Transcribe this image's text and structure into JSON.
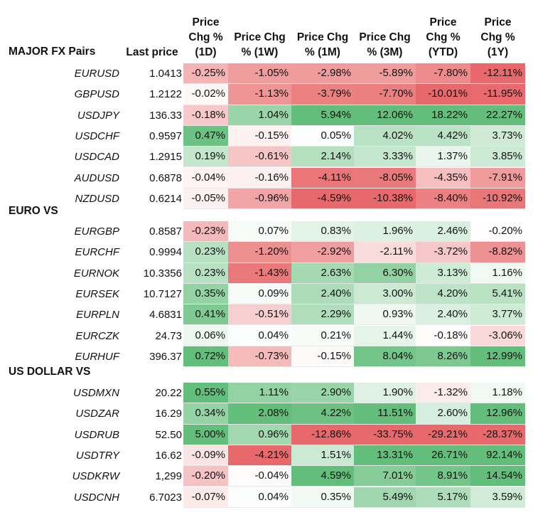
{
  "chart_data": {
    "type": "table",
    "columns": [
      {
        "key": "last",
        "lines": [
          "Last price"
        ]
      },
      {
        "key": "d1",
        "lines": [
          "Price",
          "Chg %",
          "(1D)"
        ]
      },
      {
        "key": "w1",
        "lines": [
          "Price Chg",
          "% (1W)"
        ]
      },
      {
        "key": "m1",
        "lines": [
          "Price Chg",
          "% (1M)"
        ]
      },
      {
        "key": "m3",
        "lines": [
          "Price Chg",
          "% (3M)"
        ]
      },
      {
        "key": "ytd",
        "lines": [
          "Price",
          "Chg %",
          "(YTD)"
        ]
      },
      {
        "key": "y1",
        "lines": [
          "Price",
          "Chg %",
          "(1Y)"
        ]
      }
    ],
    "sections": [
      {
        "name": "MAJOR FX Pairs",
        "rows": [
          {
            "pair": "EURUSD",
            "last": "1.0413",
            "values": [
              "-0.25%",
              "-1.05%",
              "-2.98%",
              "-5.89%",
              "-7.80%",
              "-12.11%"
            ]
          },
          {
            "pair": "GBPUSD",
            "last": "1.2122",
            "values": [
              "-0.02%",
              "-1.13%",
              "-3.79%",
              "-7.70%",
              "-10.01%",
              "-11.95%"
            ]
          },
          {
            "pair": "USDJPY",
            "last": "136.33",
            "values": [
              "-0.18%",
              "1.04%",
              "5.94%",
              "12.06%",
              "18.22%",
              "22.27%"
            ]
          },
          {
            "pair": "USDCHF",
            "last": "0.9597",
            "values": [
              "0.47%",
              "-0.15%",
              "0.05%",
              "4.02%",
              "4.42%",
              "3.73%"
            ]
          },
          {
            "pair": "USDCAD",
            "last": "1.2915",
            "values": [
              "0.19%",
              "-0.61%",
              "2.14%",
              "3.33%",
              "1.37%",
              "3.85%"
            ]
          },
          {
            "pair": "AUDUSD",
            "last": "0.6878",
            "values": [
              "-0.04%",
              "-0.16%",
              "-4.11%",
              "-8.05%",
              "-4.35%",
              "-7.91%"
            ]
          },
          {
            "pair": "NZDUSD",
            "last": "0.6214",
            "values": [
              "-0.05%",
              "-0.96%",
              "-4.59%",
              "-10.38%",
              "-8.40%",
              "-10.92%"
            ]
          }
        ]
      },
      {
        "name": "EURO VS",
        "rows": [
          {
            "pair": "EURGBP",
            "last": "0.8587",
            "values": [
              "-0.23%",
              "0.07%",
              "0.83%",
              "1.96%",
              "2.46%",
              "-0.20%"
            ]
          },
          {
            "pair": "EURCHF",
            "last": "0.9994",
            "values": [
              "0.23%",
              "-1.20%",
              "-2.92%",
              "-2.11%",
              "-3.72%",
              "-8.82%"
            ]
          },
          {
            "pair": "EURNOK",
            "last": "10.3356",
            "values": [
              "0.23%",
              "-1.43%",
              "2.63%",
              "6.30%",
              "3.13%",
              "1.16%"
            ]
          },
          {
            "pair": "EURSEK",
            "last": "10.7127",
            "values": [
              "0.35%",
              "0.09%",
              "2.40%",
              "3.00%",
              "4.20%",
              "5.41%"
            ]
          },
          {
            "pair": "EURPLN",
            "last": "4.6831",
            "values": [
              "0.41%",
              "-0.51%",
              "2.29%",
              "0.93%",
              "2.40%",
              "3.77%"
            ]
          },
          {
            "pair": "EURCZK",
            "last": "24.73",
            "values": [
              "0.06%",
              "0.04%",
              "0.21%",
              "1.44%",
              "-0.18%",
              "-3.06%"
            ]
          },
          {
            "pair": "EURHUF",
            "last": "396.37",
            "values": [
              "0.72%",
              "-0.73%",
              "-0.15%",
              "8.04%",
              "8.26%",
              "12.99%"
            ]
          }
        ]
      },
      {
        "name": "US DOLLAR VS",
        "rows": [
          {
            "pair": "USDMXN",
            "last": "20.22",
            "values": [
              "0.55%",
              "1.11%",
              "2.90%",
              "1.90%",
              "-1.32%",
              "1.18%"
            ]
          },
          {
            "pair": "USDZAR",
            "last": "16.29",
            "values": [
              "0.34%",
              "2.08%",
              "4.22%",
              "11.51%",
              "2.60%",
              "12.96%"
            ]
          },
          {
            "pair": "USDRUB",
            "last": "52.50",
            "values": [
              "5.00%",
              "0.96%",
              "-12.86%",
              "-33.75%",
              "-29.21%",
              "-28.37%"
            ]
          },
          {
            "pair": "USDTRY",
            "last": "16.62",
            "values": [
              "-0.09%",
              "-4.21%",
              "1.51%",
              "13.31%",
              "26.71%",
              "92.14%"
            ]
          },
          {
            "pair": "USDKRW",
            "last": "1,299",
            "values": [
              "-0.20%",
              "-0.04%",
              "4.59%",
              "7.01%",
              "8.91%",
              "14.54%"
            ]
          },
          {
            "pair": "USDCNH",
            "last": "6.7023",
            "values": [
              "-0.07%",
              "0.04%",
              "0.35%",
              "5.49%",
              "5.17%",
              "3.59%"
            ]
          }
        ]
      }
    ],
    "colors": {
      "positive": "#63be7b",
      "negative": "#e8696b",
      "neutral": "#ffffff"
    }
  }
}
